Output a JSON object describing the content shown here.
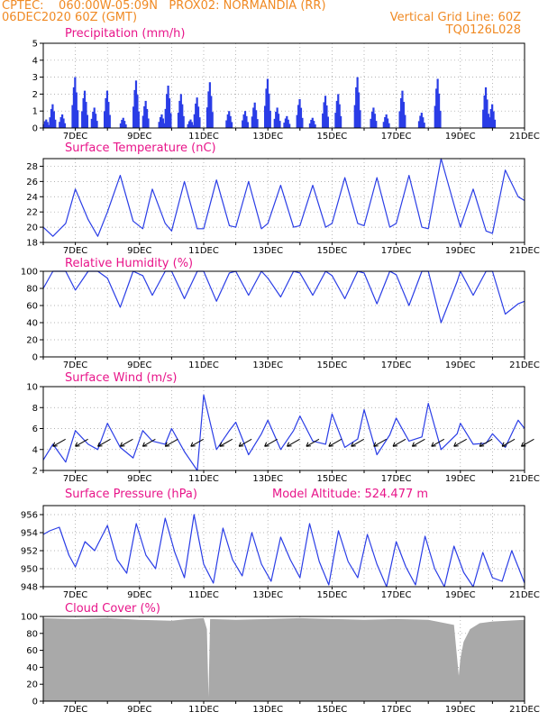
{
  "header": {
    "line1_left": "CPTEC:    060:00W-05:09N   PROX02: NORMANDIA (RR)",
    "line2_left": "06DEC2020 60Z (GMT)",
    "line2_right": "Vertical Grid Line: 60Z",
    "line3_right": "TQ0126L028"
  },
  "x_tick_labels": [
    "7DEC",
    "9DEC",
    "11DEC",
    "13DEC",
    "15DEC",
    "17DEC",
    "19DEC",
    "21DEC"
  ],
  "x_range": [
    6.0,
    21.0
  ],
  "colors": {
    "series": "#2a3de6",
    "cloud": "#a9a9a9",
    "title": "#e8158a",
    "header": "#f08a24"
  },
  "chart_data": [
    {
      "type": "bar",
      "title": "Precipitation (mm/h)",
      "ylim": [
        0,
        5
      ],
      "yticks": [
        0,
        1,
        2,
        3,
        4,
        5
      ],
      "x": [
        6.1,
        6.3,
        6.6,
        7.0,
        7.3,
        7.6,
        8.0,
        8.5,
        8.9,
        9.2,
        9.7,
        9.9,
        10.3,
        10.6,
        10.8,
        11.2,
        11.8,
        12.3,
        12.6,
        13.0,
        13.3,
        13.6,
        14.0,
        14.4,
        14.8,
        15.2,
        15.8,
        16.3,
        16.7,
        17.2,
        17.8,
        18.3,
        19.8,
        20.0
      ],
      "values": [
        0.5,
        1.4,
        0.8,
        3.0,
        2.2,
        1.2,
        2.2,
        0.6,
        2.8,
        1.6,
        0.8,
        2.5,
        2.0,
        0.5,
        1.8,
        2.7,
        1.0,
        1.0,
        1.5,
        2.9,
        1.2,
        0.7,
        1.7,
        0.6,
        1.9,
        2.0,
        3.0,
        1.2,
        0.8,
        2.2,
        0.9,
        2.9,
        2.4,
        1.4
      ]
    },
    {
      "type": "line",
      "title": "Surface Temperature (nC)",
      "ylim": [
        18,
        29
      ],
      "yticks": [
        18,
        20,
        22,
        24,
        26,
        28
      ],
      "x": [
        6.0,
        6.3,
        6.7,
        7.0,
        7.4,
        7.7,
        8.0,
        8.4,
        8.8,
        9.1,
        9.4,
        9.8,
        10.0,
        10.4,
        10.8,
        11.0,
        11.4,
        11.8,
        12.0,
        12.4,
        12.8,
        13.0,
        13.4,
        13.8,
        14.0,
        14.4,
        14.8,
        15.0,
        15.4,
        15.8,
        16.0,
        16.4,
        16.8,
        17.0,
        17.4,
        17.8,
        18.0,
        18.4,
        18.9,
        19.0,
        19.4,
        19.8,
        20.0,
        20.4,
        20.8,
        21.0
      ],
      "values": [
        20.0,
        18.8,
        20.5,
        25.0,
        21.0,
        18.8,
        22.0,
        26.8,
        20.8,
        19.8,
        25.0,
        20.5,
        19.5,
        26.0,
        19.8,
        19.8,
        26.2,
        20.2,
        20.0,
        26.0,
        19.8,
        20.5,
        25.5,
        20.0,
        20.2,
        25.5,
        20.0,
        20.5,
        26.5,
        20.5,
        20.2,
        26.5,
        20.0,
        20.5,
        26.8,
        20.0,
        19.8,
        29.0,
        21.5,
        20.0,
        25.0,
        19.5,
        19.2,
        27.5,
        24.0,
        23.5
      ]
    },
    {
      "type": "line",
      "title": "Relative Humidity (%)",
      "ylim": [
        0,
        100
      ],
      "yticks": [
        0,
        20,
        40,
        60,
        80,
        100
      ],
      "x": [
        6.0,
        6.3,
        6.7,
        7.0,
        7.4,
        7.7,
        8.0,
        8.4,
        8.8,
        9.1,
        9.4,
        9.8,
        10.0,
        10.4,
        10.8,
        11.0,
        11.4,
        11.8,
        12.0,
        12.4,
        12.8,
        13.0,
        13.4,
        13.8,
        14.0,
        14.4,
        14.8,
        15.0,
        15.4,
        15.8,
        16.0,
        16.4,
        16.8,
        17.0,
        17.4,
        17.8,
        18.0,
        18.4,
        18.9,
        19.0,
        19.4,
        19.8,
        20.0,
        20.4,
        20.8,
        21.0
      ],
      "values": [
        80,
        100,
        100,
        78,
        100,
        100,
        92,
        58,
        100,
        95,
        72,
        100,
        100,
        68,
        100,
        100,
        65,
        98,
        100,
        72,
        100,
        92,
        70,
        100,
        98,
        72,
        100,
        95,
        68,
        100,
        98,
        62,
        100,
        96,
        60,
        100,
        100,
        40,
        88,
        100,
        72,
        100,
        100,
        50,
        62,
        65
      ]
    },
    {
      "type": "line",
      "title": "Surface Wind (m/s)",
      "ylim": [
        2,
        10
      ],
      "yticks": [
        2,
        4,
        6,
        8,
        10
      ],
      "x": [
        6.0,
        6.3,
        6.7,
        7.0,
        7.4,
        7.7,
        8.0,
        8.4,
        8.8,
        9.1,
        9.4,
        9.8,
        10.0,
        10.4,
        10.8,
        11.0,
        11.4,
        11.8,
        12.0,
        12.4,
        12.8,
        13.0,
        13.4,
        13.8,
        14.0,
        14.4,
        14.8,
        15.0,
        15.4,
        15.8,
        16.0,
        16.4,
        16.8,
        17.0,
        17.4,
        17.8,
        18.0,
        18.4,
        18.9,
        19.0,
        19.4,
        19.8,
        20.0,
        20.4,
        20.8,
        21.0
      ],
      "values": [
        3.0,
        4.5,
        2.8,
        5.8,
        4.5,
        4.0,
        6.5,
        4.2,
        3.2,
        5.8,
        4.8,
        4.5,
        6.0,
        3.8,
        2.0,
        9.2,
        4.0,
        5.8,
        6.6,
        3.5,
        5.5,
        6.8,
        4.0,
        5.8,
        7.2,
        4.8,
        4.5,
        7.4,
        4.2,
        5.0,
        7.8,
        3.5,
        5.4,
        7.0,
        4.8,
        5.2,
        8.4,
        4.0,
        5.5,
        6.5,
        4.5,
        4.6,
        5.5,
        4.2,
        6.8,
        6.0
      ],
      "arrows_x": [
        6.3,
        7.0,
        7.7,
        8.4,
        9.1,
        9.8,
        10.6,
        11.5,
        12.1,
        12.9,
        13.6,
        14.2,
        14.9,
        15.6,
        16.3,
        16.9,
        17.5,
        18.1,
        18.8,
        19.6,
        20.3,
        20.9
      ]
    },
    {
      "type": "line",
      "title": "Surface Pressure (hPa)",
      "annotation": "Model Altitude: 524.477  m",
      "ylim": [
        948,
        957
      ],
      "yticks": [
        948,
        950,
        952,
        954,
        956
      ],
      "x": [
        6.0,
        6.2,
        6.5,
        6.8,
        7.0,
        7.3,
        7.6,
        8.0,
        8.3,
        8.6,
        8.9,
        9.2,
        9.5,
        9.8,
        10.1,
        10.4,
        10.7,
        11.0,
        11.3,
        11.6,
        11.9,
        12.2,
        12.5,
        12.8,
        13.1,
        13.4,
        13.7,
        14.0,
        14.3,
        14.6,
        14.9,
        15.2,
        15.5,
        15.8,
        16.1,
        16.4,
        16.7,
        17.0,
        17.3,
        17.6,
        17.9,
        18.2,
        18.5,
        18.8,
        19.1,
        19.4,
        19.7,
        20.0,
        20.3,
        20.6,
        21.0
      ],
      "values": [
        953.8,
        954.2,
        954.6,
        951.5,
        950.2,
        953.0,
        952.0,
        954.8,
        951.0,
        949.5,
        955.0,
        951.5,
        950.0,
        955.6,
        951.8,
        949.0,
        956.0,
        950.5,
        948.4,
        954.5,
        951.0,
        949.2,
        954.0,
        950.5,
        948.6,
        953.5,
        951.0,
        949.0,
        955.0,
        950.8,
        948.2,
        954.2,
        950.8,
        949.0,
        953.8,
        950.5,
        948.0,
        953.0,
        950.2,
        948.2,
        953.6,
        950.0,
        948.0,
        952.5,
        949.6,
        948.0,
        951.8,
        949.0,
        948.6,
        952.0,
        948.4
      ]
    },
    {
      "type": "area",
      "title": "Cloud Cover (%)",
      "ylim": [
        0,
        100
      ],
      "yticks": [
        0,
        20,
        40,
        60,
        80,
        100
      ],
      "x": [
        6.0,
        7.0,
        8.0,
        9.0,
        10.0,
        10.5,
        11.0,
        11.1,
        11.15,
        11.2,
        12.0,
        13.0,
        14.0,
        15.0,
        16.0,
        17.0,
        18.0,
        18.8,
        18.95,
        19.0,
        19.1,
        19.3,
        19.6,
        20.0,
        21.0
      ],
      "values": [
        98,
        97,
        98,
        96,
        95,
        97,
        98,
        85,
        5,
        97,
        96,
        97,
        98,
        97,
        96,
        97,
        96,
        90,
        30,
        50,
        70,
        85,
        92,
        94,
        96
      ]
    }
  ]
}
